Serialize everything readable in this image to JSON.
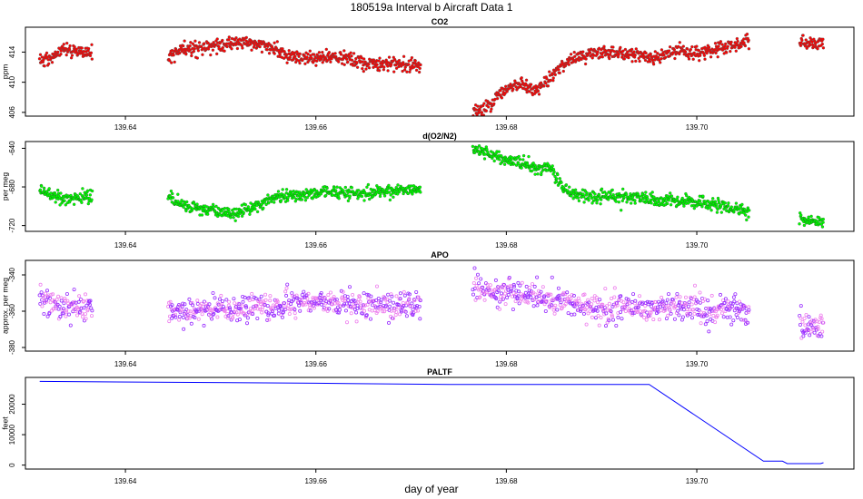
{
  "title": "180519a   Interval b Aircraft Data 1",
  "xlabel": "day of year",
  "chart_data": [
    {
      "type": "scatter",
      "name": "co2",
      "title": "CO2",
      "ylabel": "ppm",
      "xlim": [
        139.6295,
        139.7165
      ],
      "ylim": [
        405.5,
        417.3
      ],
      "xticks": [
        "139.64",
        "139.66",
        "139.68",
        "139.70"
      ],
      "xtick_values": [
        139.64,
        139.66,
        139.68,
        139.7
      ],
      "yticks": [
        "406",
        "410",
        "414"
      ],
      "ytick_values": [
        406,
        410,
        414
      ],
      "color": "#ff0000",
      "edge_color": "#555555",
      "marker": "filled-circle",
      "noise": 0.45,
      "segments": [
        {
          "x": [
            139.631,
            139.6325,
            139.6335,
            139.6345,
            139.6365
          ],
          "y": [
            412.8,
            413.3,
            414.5,
            414.2,
            414.0
          ]
        },
        {
          "x": [
            139.6445,
            139.646,
            139.648,
            139.65,
            139.652,
            139.6545,
            139.657,
            139.659,
            139.661,
            139.663,
            139.665,
            139.667,
            139.669,
            139.671
          ],
          "y": [
            413.4,
            414.2,
            414.6,
            414.9,
            415.3,
            415.0,
            413.5,
            413.1,
            413.4,
            413.2,
            412.5,
            412.4,
            412.4,
            412.3
          ]
        },
        {
          "x": [
            139.6765,
            139.6775,
            139.6785,
            139.68,
            139.6815,
            139.683,
            139.6845,
            139.686,
            139.688,
            139.69,
            139.692,
            139.694,
            139.696,
            139.698,
            139.7,
            139.702,
            139.704,
            139.7055
          ],
          "y": [
            406.3,
            406.5,
            407.2,
            409.2,
            409.8,
            408.8,
            410.4,
            412.6,
            413.5,
            414.0,
            414.1,
            413.6,
            413.1,
            414.3,
            413.9,
            414.3,
            415.0,
            415.3
          ]
        },
        {
          "x": [
            139.7108,
            139.712,
            139.7133
          ],
          "y": [
            415.4,
            415.2,
            415.1
          ]
        }
      ]
    },
    {
      "type": "scatter",
      "name": "do2n2",
      "title": "d(O2/N2)",
      "ylabel": "per meg",
      "xlim": [
        139.6295,
        139.7165
      ],
      "ylim": [
        -726,
        -633
      ],
      "xticks": [
        "139.64",
        "139.66",
        "139.68",
        "139.70"
      ],
      "xtick_values": [
        139.64,
        139.66,
        139.68,
        139.7
      ],
      "yticks": [
        "-720",
        "-680",
        "-640"
      ],
      "ytick_values": [
        -720,
        -680,
        -640
      ],
      "color": "#00ff00",
      "edge_color": "#1f5f1f",
      "marker": "filled-circle",
      "noise": 3.2,
      "segments": [
        {
          "x": [
            139.631,
            139.632,
            139.6335,
            139.635,
            139.6365
          ],
          "y": [
            -680,
            -688,
            -692,
            -691,
            -690
          ]
        },
        {
          "x": [
            139.6445,
            139.646,
            139.648,
            139.65,
            139.652,
            139.6535,
            139.6555,
            139.6575,
            139.6595,
            139.662,
            139.665,
            139.668,
            139.67,
            139.671
          ],
          "y": [
            -690,
            -698,
            -702,
            -706,
            -707,
            -700,
            -692,
            -688,
            -686,
            -686,
            -687,
            -684,
            -684,
            -683
          ]
        },
        {
          "x": [
            139.6765,
            139.678,
            139.6795,
            139.6815,
            139.683,
            139.6845,
            139.686,
            139.688,
            139.69,
            139.692,
            139.694,
            139.696,
            139.698,
            139.7,
            139.702,
            139.7035,
            139.7055
          ],
          "y": [
            -642,
            -645,
            -650,
            -655,
            -662,
            -658,
            -683,
            -689,
            -690,
            -690,
            -690,
            -695,
            -694,
            -696,
            -698,
            -702,
            -707
          ]
        },
        {
          "x": [
            139.7108,
            139.712,
            139.7133
          ],
          "y": [
            -713,
            -716,
            -716
          ]
        }
      ]
    },
    {
      "type": "scatter",
      "name": "apo",
      "title": "APO",
      "ylabel": "approx. per meg",
      "xlim": [
        139.6295,
        139.7165
      ],
      "ylim": [
        -382,
        -332
      ],
      "xticks": [
        "139.64",
        "139.66",
        "139.68",
        "139.70"
      ],
      "xtick_values": [
        139.64,
        139.66,
        139.68,
        139.7
      ],
      "yticks": [
        "-380",
        "-360",
        "-340"
      ],
      "ytick_values": [
        -380,
        -360,
        -340
      ],
      "color": "#ee82ee",
      "edge_color": "#9b30ff",
      "marker": "open-circle",
      "noise": 3.6,
      "segments": [
        {
          "x": [
            139.631,
            139.6325,
            139.6345,
            139.6365
          ],
          "y": [
            -352,
            -356,
            -357,
            -356
          ]
        },
        {
          "x": [
            139.6445,
            139.647,
            139.65,
            139.653,
            139.656,
            139.659,
            139.662,
            139.665,
            139.668,
            139.671
          ],
          "y": [
            -358,
            -360,
            -360,
            -358,
            -357,
            -355,
            -356,
            -357,
            -357,
            -357
          ]
        },
        {
          "x": [
            139.6765,
            139.6785,
            139.6805,
            139.683,
            139.685,
            139.687,
            139.69,
            139.693,
            139.696,
            139.699,
            139.702,
            139.7055
          ],
          "y": [
            -347,
            -349,
            -350,
            -352,
            -355,
            -357,
            -358,
            -358,
            -358,
            -358,
            -359,
            -360
          ]
        },
        {
          "x": [
            139.7108,
            139.712,
            139.7133
          ],
          "y": [
            -368,
            -370,
            -368
          ]
        }
      ]
    },
    {
      "type": "line",
      "name": "paltf",
      "title": "PALTF",
      "ylabel": "feet",
      "xlim": [
        139.6295,
        139.7165
      ],
      "ylim": [
        -1300,
        28800
      ],
      "xticks": [
        "139.64",
        "139.66",
        "139.68",
        "139.70"
      ],
      "xtick_values": [
        139.64,
        139.66,
        139.68,
        139.7
      ],
      "yticks": [
        "0",
        "10000",
        "20000"
      ],
      "ytick_values": [
        0,
        10000,
        20000
      ],
      "color": "#0000ff",
      "x": [
        139.631,
        139.66,
        139.674,
        139.695,
        139.707,
        139.709,
        139.7095,
        139.7105,
        139.713,
        139.7133
      ],
      "y": [
        27500,
        26900,
        26500,
        26500,
        1300,
        1300,
        500,
        500,
        500,
        800
      ]
    }
  ]
}
